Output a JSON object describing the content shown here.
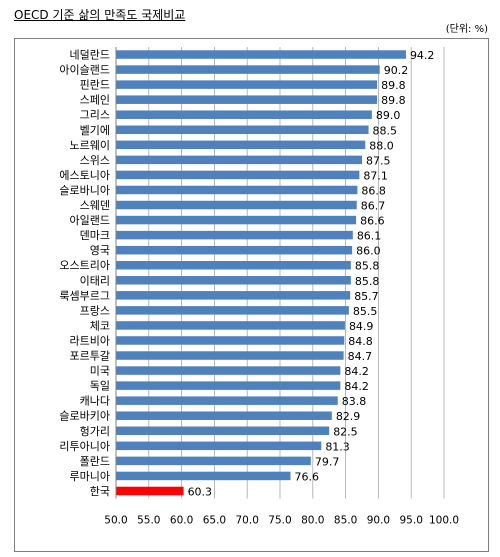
{
  "title": "OECD 기준 삶의 만족도 국제비교",
  "unit_note": "(단위: %)",
  "chart_data": {
    "type": "bar",
    "orientation": "horizontal",
    "categories": [
      "네덜란드",
      "아이슬랜드",
      "핀란드",
      "스페인",
      "그리스",
      "벨기에",
      "노르웨이",
      "스위스",
      "에스토니아",
      "슬로바니아",
      "스웨덴",
      "아일랜드",
      "덴마크",
      "영국",
      "오스트리아",
      "이태리",
      "룩셈부르그",
      "프랑스",
      "체코",
      "라트비아",
      "포르투갈",
      "미국",
      "독일",
      "캐나다",
      "슬로바키아",
      "헝가리",
      "리투아니아",
      "폴란드",
      "루마니아",
      "한국"
    ],
    "values": [
      94.2,
      90.2,
      89.8,
      89.8,
      89.0,
      88.5,
      88.0,
      87.5,
      87.1,
      86.8,
      86.7,
      86.6,
      86.1,
      86.0,
      85.8,
      85.8,
      85.7,
      85.5,
      84.9,
      84.8,
      84.7,
      84.2,
      84.2,
      83.8,
      82.9,
      82.5,
      81.3,
      79.7,
      76.6,
      60.3
    ],
    "value_labels": [
      "94.2",
      "90.2",
      "89.8",
      "89.8",
      "89.0",
      "88.5",
      "88.0",
      "87.5",
      "87.1",
      "86.8",
      "86.7",
      "86.6",
      "86.1",
      "86.0",
      "85.8",
      "85.8",
      "85.7",
      "85.5",
      "84.9",
      "84.8",
      "84.7",
      "84.2",
      "84.2",
      "83.8",
      "82.9",
      "82.5",
      "81.3",
      "79.7",
      "76.6",
      "60.3"
    ],
    "xlim": [
      50,
      100
    ],
    "x_ticks": [
      "50.0",
      "55.0",
      "60.0",
      "65.0",
      "70.0",
      "75.0",
      "80.0",
      "85.0",
      "90.0",
      "95.0",
      "100.0"
    ],
    "grid": "vertical",
    "bar_color": "#4f81bd",
    "highlight": {
      "category": "한국",
      "color": "#ff0000"
    },
    "xlabel": "",
    "ylabel": ""
  }
}
